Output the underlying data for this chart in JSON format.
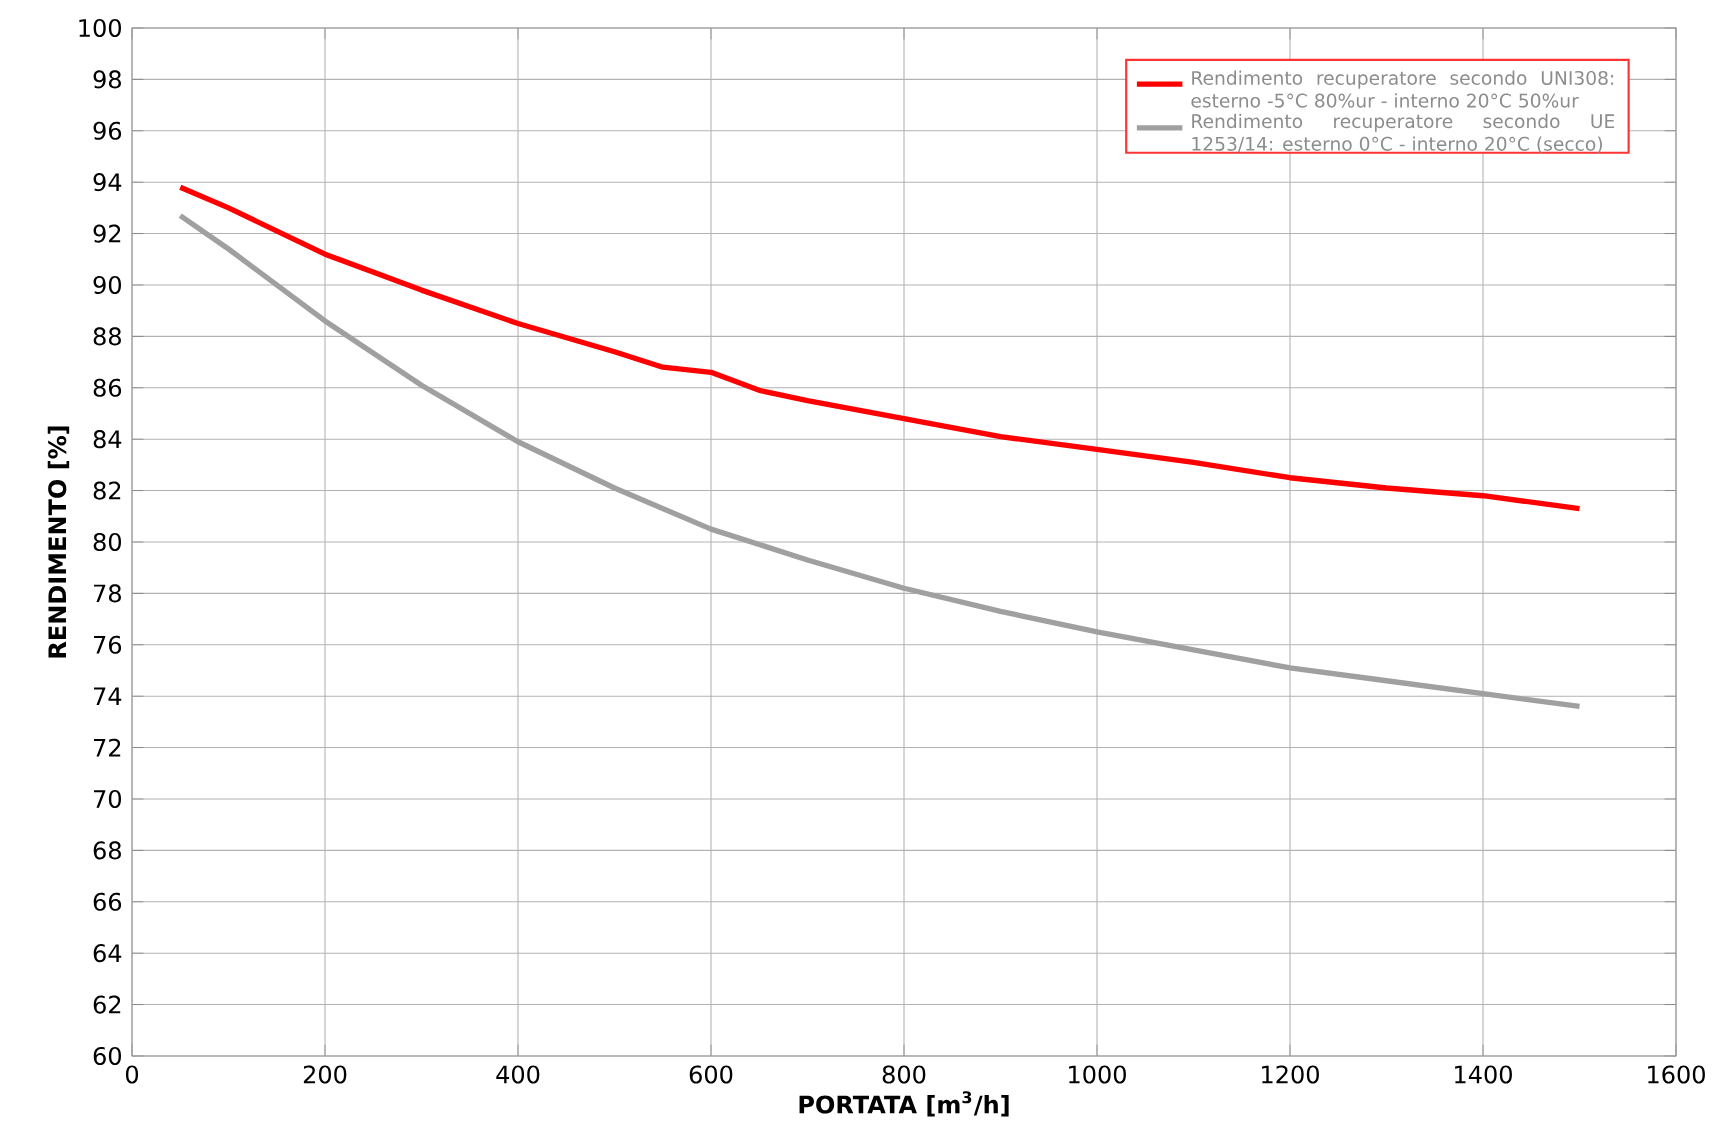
{
  "chart_data": {
    "type": "line",
    "xlabel": "PORTATA [m$^{3}$/h]",
    "ylabel": "RENDIMENTO [%]",
    "xlim": [
      0,
      1600
    ],
    "xticks": [
      0,
      200,
      400,
      600,
      800,
      1000,
      1200,
      1400,
      1600
    ],
    "ylim": [
      60,
      100
    ],
    "yticks": [
      60,
      62,
      64,
      66,
      68,
      70,
      72,
      74,
      76,
      78,
      80,
      82,
      84,
      86,
      88,
      90,
      92,
      94,
      96,
      98,
      100
    ],
    "grid": true,
    "legend": "top right",
    "marker": "none",
    "line_style": "solid",
    "series": [
      {
        "name": "Rendimento recuperatore secondo UNI308: esterno -5°C 80%ur - interno 20°C 50%ur",
        "color": "#ff0000",
        "x": [
          50,
          100,
          200,
          300,
          400,
          500,
          550,
          600,
          650,
          700,
          800,
          900,
          1000,
          1100,
          1200,
          1300,
          1400,
          1500
        ],
        "values": [
          93.8,
          93,
          91.2,
          89.8,
          88.5,
          87.4,
          86.8,
          86.6,
          85.9,
          85.5,
          84.8,
          84.1,
          83.6,
          83.1,
          82.5,
          82.1,
          81.8,
          81.3
        ]
      },
      {
        "name": "Rendimento recuperatore secondo UE 1253/14: esterno 0°C - interno 20°C (secco)",
        "color": "#a0a0a0",
        "x": [
          50,
          100,
          200,
          300,
          400,
          500,
          600,
          700,
          800,
          900,
          1000,
          1100,
          1200,
          1300,
          1400,
          1500
        ],
        "values": [
          92.7,
          91.4,
          88.6,
          86.1,
          83.9,
          82.1,
          80.5,
          79.3,
          78.2,
          77.3,
          76.5,
          75.8,
          75.1,
          74.6,
          74.1,
          73.6
        ]
      }
    ]
  }
}
